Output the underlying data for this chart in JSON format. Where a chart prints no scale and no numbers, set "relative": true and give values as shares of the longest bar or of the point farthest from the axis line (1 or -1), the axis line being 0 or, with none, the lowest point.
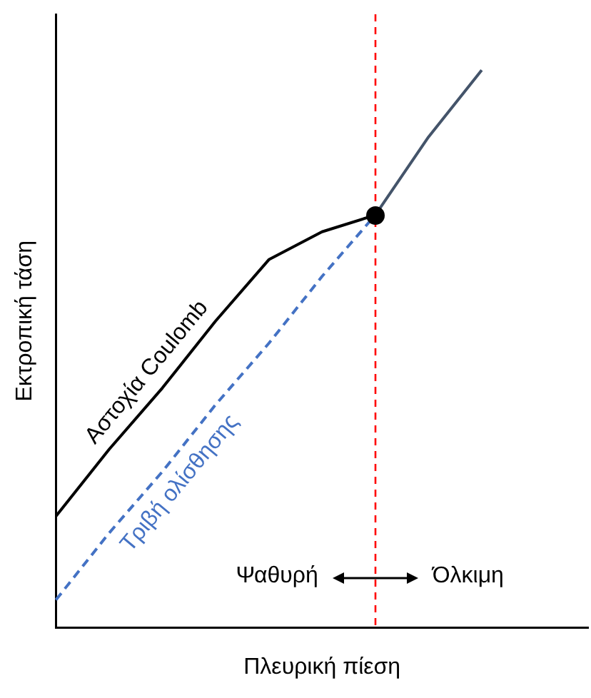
{
  "chart_data": {
    "type": "line",
    "relative": true,
    "xlabel": "Πλευρική πίεση",
    "ylabel": "Εκτροπική τάση",
    "categories": [
      null,
      null,
      null,
      null,
      null,
      null,
      null,
      null,
      null,
      null,
      null
    ],
    "grid": false,
    "legend": false,
    "series": [
      {
        "name": "Αστοχία Coulomb",
        "color": "#000000",
        "values": [
          0.2,
          0.32,
          0.43,
          0.55,
          0.66,
          0.71,
          0.74,
          null,
          null,
          null,
          null
        ],
        "line_style": "solid"
      },
      {
        "name": "Τριβή ολίσθησης",
        "color": "#4472c4",
        "values": [
          0.05,
          0.17,
          0.28,
          0.4,
          0.51,
          0.63,
          0.74,
          null,
          null,
          null,
          null
        ],
        "line_style": "dashed"
      },
      {
        "color": "#44546a",
        "values": [
          null,
          null,
          null,
          null,
          null,
          null,
          0.74,
          0.88,
          1,
          null,
          null
        ],
        "line_style": "solid"
      }
    ],
    "annotations": [
      "Ψαθυρή",
      "Όλκιμη"
    ]
  }
}
